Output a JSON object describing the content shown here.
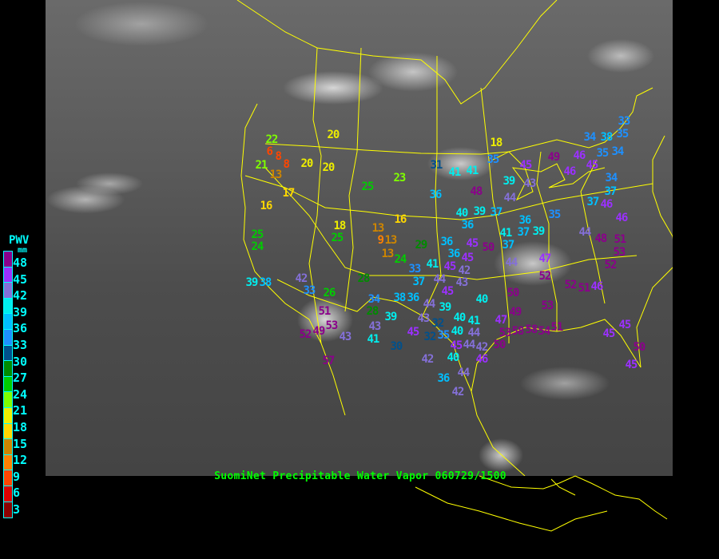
{
  "caption": "SuomiNet Precipitable Water Vapor 060729/1500",
  "legend": {
    "title": "PWV",
    "unit": "mm",
    "ticks": [
      "48",
      "45",
      "42",
      "39",
      "36",
      "33",
      "30",
      "27",
      "24",
      "21",
      "18",
      "15",
      "12",
      "9",
      "6",
      "3"
    ],
    "colors": [
      "#8b008b",
      "#9b30ff",
      "#8470d8",
      "#00eeee",
      "#00bfff",
      "#1e90ff",
      "#00508b",
      "#008b00",
      "#00cd00",
      "#7fff00",
      "#eeee00",
      "#ffd700",
      "#cd8500",
      "#ff8000",
      "#ff4500",
      "#dd0000",
      "#8b0000"
    ],
    "text_color": "#00ffff",
    "border_color": "#00ffff"
  },
  "map": {
    "border_color": "#ffff00",
    "caption_color": "#00ff00",
    "stations": [
      "22",
      "6",
      "8",
      "8",
      "21",
      "13",
      "20",
      "20",
      "20",
      "17",
      "16",
      "25",
      "24",
      "18",
      "25",
      "25",
      "23",
      "31",
      "41",
      "41",
      "36",
      "16",
      "13",
      "9",
      "13",
      "13",
      "29",
      "36",
      "24",
      "36",
      "39",
      "40",
      "37",
      "36",
      "35",
      "48",
      "35",
      "18",
      "49",
      "45",
      "46",
      "45",
      "46",
      "34",
      "38",
      "35",
      "33",
      "35",
      "34",
      "34",
      "37",
      "37",
      "46",
      "46",
      "39",
      "43",
      "44",
      "41",
      "37",
      "37",
      "39",
      "44",
      "48",
      "51",
      "53",
      "52",
      "47",
      "44",
      "45",
      "50",
      "36",
      "45",
      "52",
      "50",
      "52",
      "51",
      "46",
      "53",
      "49",
      "47",
      "53",
      "58",
      "58",
      "54",
      "51",
      "50",
      "45",
      "45",
      "50",
      "45",
      "40",
      "40",
      "41",
      "44",
      "44",
      "45",
      "42",
      "46",
      "39",
      "38",
      "42",
      "33",
      "26",
      "28",
      "33",
      "37",
      "51",
      "53",
      "49",
      "52",
      "43",
      "57",
      "34",
      "28",
      "39",
      "43",
      "41",
      "30",
      "38",
      "36",
      "44",
      "39",
      "43",
      "32",
      "45",
      "32",
      "35",
      "40",
      "42",
      "40",
      "36",
      "44",
      "42",
      "41",
      "45",
      "42",
      "43",
      "44",
      "45"
    ]
  }
}
